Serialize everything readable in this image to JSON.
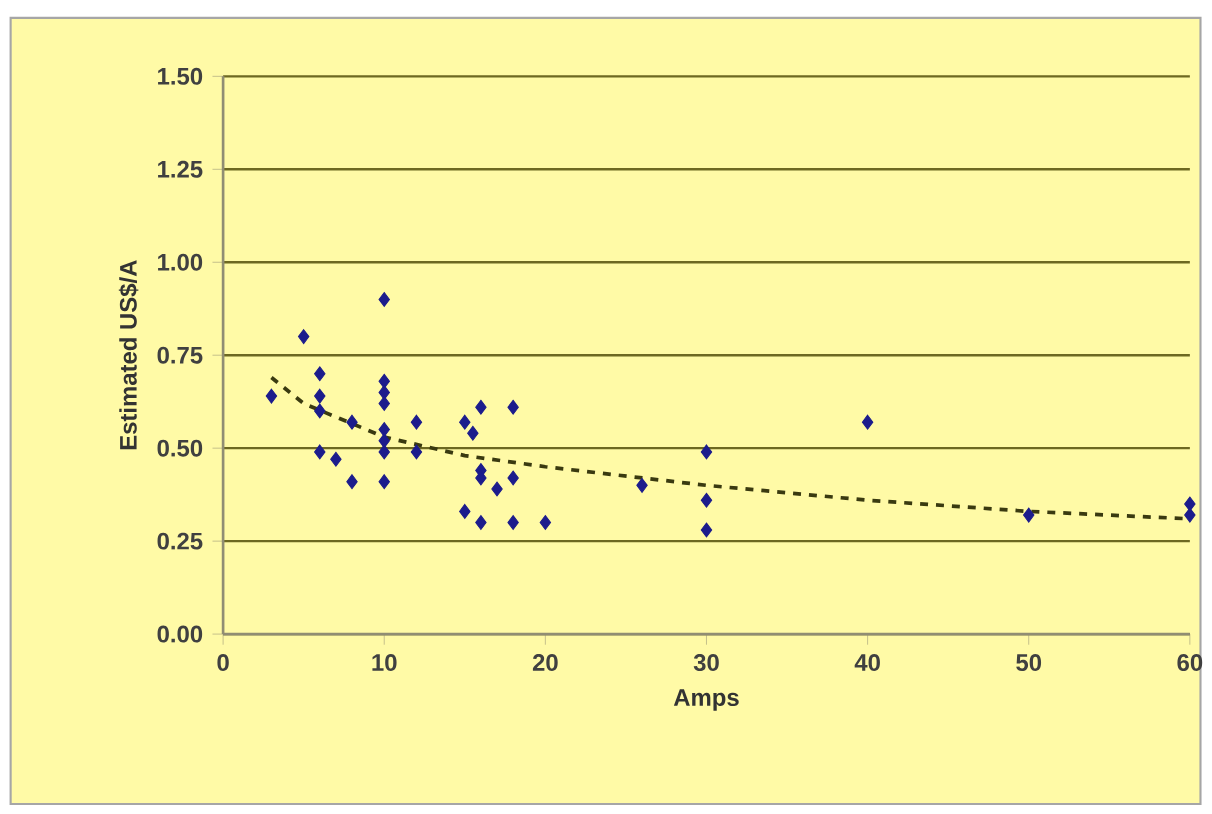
{
  "chart_data": {
    "type": "scatter",
    "xlabel": "Amps",
    "ylabel": "Estimated US$/A",
    "xlim": [
      0,
      60
    ],
    "ylim": [
      0,
      1.5
    ],
    "xticks": [
      0,
      10,
      20,
      30,
      40,
      50,
      60
    ],
    "yticks": [
      {
        "value": 0,
        "label": "0.00"
      },
      {
        "value": 0.25,
        "label": "0.25"
      },
      {
        "value": 0.5,
        "label": "0.50"
      },
      {
        "value": 0.75,
        "label": "0.75"
      },
      {
        "value": 1,
        "label": "1.00"
      },
      {
        "value": 1.25,
        "label": "1.25"
      },
      {
        "value": 1.5,
        "label": "1.50"
      }
    ],
    "grid": "y",
    "series": [
      {
        "marker": "diamond",
        "color": "#1c1c8c",
        "x": [
          3,
          5,
          6,
          6,
          6,
          6,
          7,
          8,
          8,
          10,
          10,
          10,
          10,
          10,
          10,
          10,
          10,
          12,
          12,
          15,
          15.5,
          15,
          16,
          16,
          16,
          16,
          17,
          18,
          18,
          18,
          20,
          26,
          30,
          30,
          30,
          40,
          50,
          60,
          60
        ],
        "values": [
          0.64,
          0.8,
          0.7,
          0.64,
          0.6,
          0.49,
          0.47,
          0.57,
          0.41,
          0.9,
          0.68,
          0.65,
          0.62,
          0.55,
          0.52,
          0.49,
          0.41,
          0.57,
          0.49,
          0.57,
          0.54,
          0.33,
          0.61,
          0.44,
          0.42,
          0.3,
          0.39,
          0.61,
          0.42,
          0.3,
          0.3,
          0.4,
          0.49,
          0.36,
          0.28,
          0.57,
          0.32,
          0.35,
          0.32
        ]
      },
      {
        "type": "line",
        "color": "#3a3a10",
        "line_style": "dashed",
        "x": [
          3,
          5,
          10,
          15,
          20,
          30,
          40,
          50,
          60
        ],
        "values": [
          0.69,
          0.62,
          0.53,
          0.48,
          0.45,
          0.4,
          0.36,
          0.33,
          0.31
        ]
      }
    ]
  }
}
